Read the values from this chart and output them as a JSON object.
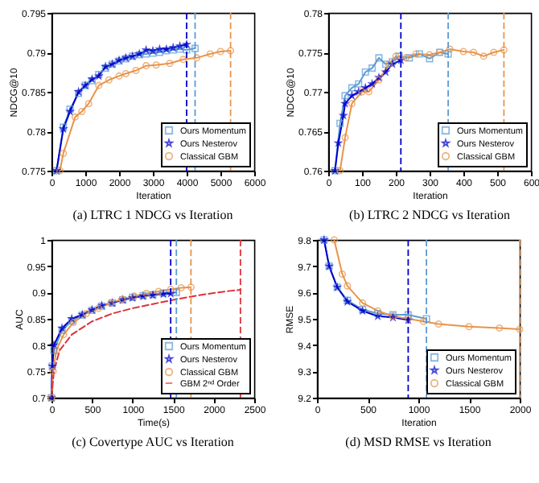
{
  "chart_data": [
    {
      "type": "line",
      "title": "(a) LTRC 1 NDCG vs Iteration",
      "xlabel": "Iteration",
      "ylabel": "NDCG@10",
      "xlim": [
        0,
        6000
      ],
      "xticks": [
        0,
        1000,
        2000,
        3000,
        4000,
        5000,
        6000
      ],
      "ylim": [
        0.775,
        0.795
      ],
      "yticks": [
        0.775,
        0.78,
        0.785,
        0.79,
        0.795
      ],
      "legend": "bottom right",
      "series": [
        {
          "name": "Ours Momentum",
          "color": "#5b9bd5",
          "marker": "square",
          "x": [
            150,
            350,
            550,
            800,
            1000,
            1200,
            1400,
            1600,
            1800,
            2000,
            2200,
            2400,
            2600,
            2800,
            3000,
            3200,
            3400,
            3600,
            3800,
            4000,
            4250
          ],
          "values": [
            0.775,
            0.7805,
            0.7828,
            0.7848,
            0.7858,
            0.7864,
            0.7872,
            0.788,
            0.7885,
            0.7889,
            0.7892,
            0.7895,
            0.7897,
            0.7898,
            0.7899,
            0.79,
            0.7902,
            0.7903,
            0.7904,
            0.7903,
            0.7905
          ]
        },
        {
          "name": "Ours Nesterov",
          "color": "#0000cc",
          "marker": "star",
          "x": [
            150,
            350,
            550,
            800,
            1000,
            1200,
            1400,
            1600,
            1800,
            2000,
            2200,
            2400,
            2600,
            2800,
            3000,
            3200,
            3400,
            3600,
            3800,
            4000
          ],
          "values": [
            0.775,
            0.7803,
            0.7825,
            0.785,
            0.7858,
            0.7866,
            0.787,
            0.7882,
            0.7885,
            0.789,
            0.7893,
            0.7895,
            0.7898,
            0.7903,
            0.7902,
            0.7904,
            0.7904,
            0.7906,
            0.7908,
            0.791
          ]
        },
        {
          "name": "Classical GBM",
          "color": "#e8944a",
          "marker": "circle",
          "x": [
            250,
            350,
            700,
            900,
            1100,
            1400,
            1700,
            2000,
            2200,
            2500,
            2800,
            3100,
            3500,
            3900,
            4300,
            4700,
            5000,
            5300
          ],
          "values": [
            0.775,
            0.7772,
            0.7818,
            0.7825,
            0.7835,
            0.7858,
            0.7865,
            0.787,
            0.7873,
            0.7877,
            0.7883,
            0.7884,
            0.7886,
            0.7891,
            0.7893,
            0.7898,
            0.7901,
            0.7902
          ]
        }
      ],
      "ref_lines": [
        {
          "axis": "x",
          "value": 4000,
          "color": "#0000cc",
          "line_style": "dashed"
        },
        {
          "axis": "x",
          "value": 4250,
          "color": "#5b9bd5",
          "line_style": "dashed"
        },
        {
          "axis": "x",
          "value": 5300,
          "color": "#e8944a",
          "line_style": "dashed"
        }
      ]
    },
    {
      "type": "line",
      "title": "(b) LTRC 2 NDCG vs Iteration",
      "xlabel": "Iteration",
      "ylabel": "NDCG@10",
      "xlim": [
        0,
        600
      ],
      "xticks": [
        0,
        100,
        200,
        300,
        400,
        500,
        600
      ],
      "ylim": [
        0.76,
        0.78
      ],
      "yticks": [
        0.76,
        0.765,
        0.77,
        0.775,
        0.78
      ],
      "legend": "bottom right",
      "series": [
        {
          "name": "Ours Momentum",
          "color": "#5b9bd5",
          "marker": "square",
          "x": [
            20,
            35,
            50,
            70,
            90,
            110,
            130,
            150,
            170,
            190,
            210,
            240,
            270,
            300,
            330,
            355
          ],
          "values": [
            0.76,
            0.766,
            0.7695,
            0.7705,
            0.771,
            0.7725,
            0.773,
            0.7743,
            0.7735,
            0.7738,
            0.7745,
            0.7743,
            0.7748,
            0.7742,
            0.775,
            0.7748
          ]
        },
        {
          "name": "Ours Nesterov",
          "color": "#0000cc",
          "marker": "star",
          "x": [
            20,
            30,
            45,
            50,
            70,
            90,
            110,
            130,
            150,
            170,
            190,
            215
          ],
          "values": [
            0.76,
            0.7635,
            0.767,
            0.7685,
            0.7695,
            0.77,
            0.7705,
            0.771,
            0.7718,
            0.7725,
            0.7735,
            0.774
          ]
        },
        {
          "name": "Classical GBM",
          "color": "#e8944a",
          "marker": "circle",
          "x": [
            35,
            50,
            70,
            100,
            120,
            150,
            180,
            200,
            230,
            260,
            300,
            330,
            360,
            400,
            430,
            460,
            490,
            520
          ],
          "values": [
            0.76,
            0.7642,
            0.7685,
            0.77,
            0.77,
            0.7715,
            0.7735,
            0.7745,
            0.7743,
            0.7748,
            0.7747,
            0.775,
            0.7754,
            0.7751,
            0.775,
            0.7745,
            0.775,
            0.7753
          ]
        }
      ],
      "ref_lines": [
        {
          "axis": "x",
          "value": 215,
          "color": "#0000cc",
          "line_style": "dashed"
        },
        {
          "axis": "x",
          "value": 355,
          "color": "#5b9bd5",
          "line_style": "dashed"
        },
        {
          "axis": "x",
          "value": 520,
          "color": "#e8944a",
          "line_style": "dashed"
        }
      ]
    },
    {
      "type": "line",
      "title": "(c) Covertype AUC vs Iteration",
      "xlabel": "Time(s)",
      "ylabel": "AUC",
      "xlim": [
        0,
        2500
      ],
      "xticks": [
        0,
        500,
        1000,
        1500,
        2000,
        2500
      ],
      "ylim": [
        0.7,
        1
      ],
      "yticks": [
        0.7,
        0.75,
        0.8,
        0.85,
        0.9,
        0.95,
        1
      ],
      "legend": "bottom right",
      "series": [
        {
          "name": "Ours Momentum",
          "color": "#5b9bd5",
          "marker": "square",
          "x": [
            0,
            10,
            30,
            130,
            250,
            380,
            500,
            620,
            750,
            880,
            1000,
            1130,
            1250,
            1380,
            1540
          ],
          "values": [
            0.7,
            0.76,
            0.79,
            0.828,
            0.846,
            0.857,
            0.866,
            0.874,
            0.88,
            0.886,
            0.891,
            0.894,
            0.896,
            0.899,
            0.9
          ]
        },
        {
          "name": "Ours Nesterov",
          "color": "#0000cc",
          "marker": "star",
          "x": [
            0,
            10,
            30,
            130,
            250,
            380,
            500,
            620,
            750,
            880,
            1000,
            1130,
            1250,
            1380,
            1470
          ],
          "values": [
            0.7,
            0.76,
            0.8,
            0.832,
            0.85,
            0.858,
            0.867,
            0.875,
            0.88,
            0.886,
            0.89,
            0.893,
            0.895,
            0.897,
            0.898
          ]
        },
        {
          "name": "Classical GBM",
          "color": "#e8944a",
          "marker": "circle",
          "x": [
            0,
            20,
            60,
            150,
            270,
            430,
            580,
            730,
            870,
            1020,
            1170,
            1320,
            1470,
            1600,
            1720
          ],
          "values": [
            0.7,
            0.75,
            0.79,
            0.82,
            0.843,
            0.86,
            0.87,
            0.88,
            0.887,
            0.893,
            0.898,
            0.902,
            0.906,
            0.909,
            0.91
          ]
        },
        {
          "name": "GBM 2ⁿᵈ Order",
          "color": "#e0303a",
          "marker": "none",
          "line_style": "dashed",
          "x": [
            0,
            30,
            100,
            250,
            500,
            750,
            1000,
            1250,
            1500,
            1750,
            2000,
            2200,
            2330
          ],
          "values": [
            0.7,
            0.75,
            0.79,
            0.82,
            0.845,
            0.86,
            0.87,
            0.878,
            0.886,
            0.893,
            0.899,
            0.903,
            0.905
          ]
        }
      ],
      "ref_lines": [
        {
          "axis": "x",
          "value": 1470,
          "color": "#0000cc",
          "line_style": "dashed"
        },
        {
          "axis": "x",
          "value": 1540,
          "color": "#5b9bd5",
          "line_style": "dashed"
        },
        {
          "axis": "x",
          "value": 1720,
          "color": "#e8944a",
          "line_style": "dashed"
        },
        {
          "axis": "x",
          "value": 2330,
          "color": "#e0303a",
          "line_style": "dashed"
        }
      ]
    },
    {
      "type": "line",
      "title": "(d) MSD RMSE vs Iteration",
      "xlabel": "Iteration",
      "ylabel": "RMSE",
      "xlim": [
        0,
        2000
      ],
      "xticks": [
        0,
        500,
        1000,
        1500,
        2000
      ],
      "ylim": [
        9.2,
        9.8
      ],
      "yticks": [
        9.2,
        9.3,
        9.4,
        9.5,
        9.6,
        9.7,
        9.8
      ],
      "legend": "bottom right",
      "series": [
        {
          "name": "Ours Momentum",
          "color": "#5b9bd5",
          "marker": "square",
          "x": [
            70,
            120,
            200,
            300,
            450,
            600,
            750,
            900,
            1080
          ],
          "values": [
            9.8,
            9.7,
            9.62,
            9.57,
            9.535,
            9.52,
            9.515,
            9.515,
            9.5
          ]
        },
        {
          "name": "Ours Nesterov",
          "color": "#0000cc",
          "marker": "star",
          "x": [
            70,
            120,
            200,
            300,
            450,
            600,
            750,
            900
          ],
          "values": [
            9.8,
            9.7,
            9.62,
            9.565,
            9.53,
            9.51,
            9.505,
            9.495
          ]
        },
        {
          "name": "Classical GBM",
          "color": "#e8944a",
          "marker": "circle",
          "x": [
            170,
            250,
            300,
            450,
            600,
            750,
            900,
            1050,
            1200,
            1500,
            1800,
            2000
          ],
          "values": [
            9.8,
            9.67,
            9.625,
            9.56,
            9.53,
            9.51,
            9.5,
            9.49,
            9.48,
            9.47,
            9.465,
            9.46
          ]
        }
      ],
      "ref_lines": [
        {
          "axis": "x",
          "value": 900,
          "color": "#0000cc",
          "line_style": "dashed"
        },
        {
          "axis": "x",
          "value": 1080,
          "color": "#5b9bd5",
          "line_style": "dashed"
        },
        {
          "axis": "x",
          "value": 2000,
          "color": "#e8944a",
          "line_style": "dashed"
        }
      ]
    }
  ]
}
